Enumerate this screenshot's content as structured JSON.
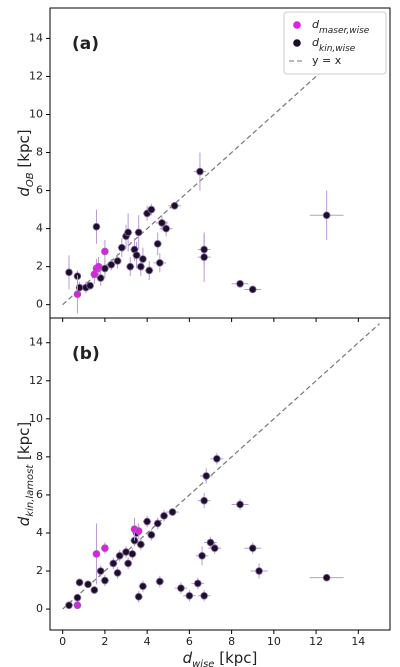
{
  "chart_data": [
    {
      "type": "scatter",
      "panel_label": "(a)",
      "ylabel": {
        "text": "d",
        "subscript": "OB",
        "unit": "[kpc]"
      },
      "xlim": [
        -0.6,
        15.5
      ],
      "ylim": [
        -0.7,
        15.6
      ],
      "xticks": [
        0,
        2,
        4,
        6,
        8,
        10,
        12,
        14
      ],
      "yticks": [
        0,
        2,
        4,
        6,
        8,
        10,
        12,
        14
      ],
      "show_xtick_labels": false,
      "legend": "upper right",
      "series": [
        {
          "name": "d",
          "name_subscript": "maser,wise",
          "color": "#e020e0",
          "x": [
            0.7,
            1.5,
            1.6,
            1.7,
            2.0
          ],
          "values": [
            0.55,
            1.6,
            1.9,
            2.0,
            2.8
          ],
          "xerr": [
            0.1,
            0.1,
            0.1,
            0.1,
            0.1
          ],
          "yerr": [
            1.0,
            0.5,
            0.5,
            0.5,
            0.6
          ]
        },
        {
          "name": "d",
          "name_subscript": "kin,wise",
          "color": "#1c1028",
          "x": [
            0.3,
            0.7,
            0.8,
            1.1,
            1.3,
            1.6,
            1.8,
            2.0,
            2.3,
            2.6,
            2.8,
            3.0,
            3.1,
            3.2,
            3.4,
            3.5,
            3.6,
            3.7,
            3.8,
            4.0,
            4.1,
            4.2,
            4.5,
            4.6,
            4.7,
            4.9,
            5.3,
            6.5,
            6.7,
            6.7,
            8.4,
            9.0,
            12.5
          ],
          "values": [
            1.7,
            1.5,
            0.9,
            0.9,
            1.0,
            4.1,
            1.4,
            1.9,
            2.1,
            2.3,
            3.0,
            3.6,
            3.8,
            2.0,
            2.9,
            2.6,
            3.8,
            2.0,
            2.4,
            4.8,
            1.8,
            5.0,
            3.2,
            2.2,
            4.3,
            4.0,
            5.2,
            7.0,
            2.9,
            2.5,
            1.1,
            0.8,
            4.7
          ],
          "xerr": [
            0.1,
            0.1,
            0.1,
            0.1,
            0.1,
            0.1,
            0.1,
            0.2,
            0.2,
            0.2,
            0.2,
            0.2,
            0.2,
            0.2,
            0.2,
            0.2,
            0.2,
            0.2,
            0.2,
            0.2,
            0.2,
            0.2,
            0.2,
            0.3,
            0.3,
            0.3,
            0.3,
            0.3,
            0.3,
            0.3,
            0.4,
            0.4,
            0.8
          ],
          "yerr": [
            0.9,
            0.3,
            0.3,
            0.3,
            0.2,
            0.9,
            0.4,
            0.5,
            0.3,
            0.4,
            0.5,
            0.6,
            1.0,
            0.5,
            0.6,
            0.7,
            0.9,
            0.5,
            0.6,
            0.4,
            0.5,
            0.3,
            0.6,
            0.5,
            0.4,
            0.4,
            0.2,
            1.0,
            0.8,
            1.3,
            0.1,
            0.1,
            1.3
          ]
        }
      ],
      "reference_line": {
        "name": "y = x",
        "x": [
          0,
          15
        ],
        "y": [
          0,
          15
        ],
        "color": "#777777"
      }
    },
    {
      "type": "scatter",
      "panel_label": "(b)",
      "ylabel": {
        "text": "d",
        "subscript": "kin,lamost",
        "unit": "[kpc]"
      },
      "xlabel": {
        "text": "d",
        "subscript": "wise",
        "unit": "[kpc]"
      },
      "xlim": [
        -0.6,
        15.5
      ],
      "ylim": [
        -1.1,
        15.3
      ],
      "xticks": [
        0,
        2,
        4,
        6,
        8,
        10,
        12,
        14
      ],
      "yticks": [
        0,
        2,
        4,
        6,
        8,
        10,
        12,
        14
      ],
      "show_xtick_labels": true,
      "series": [
        {
          "name": "d",
          "name_subscript": "maser,wise",
          "color": "#e020e0",
          "x": [
            0.7,
            1.6,
            2.0,
            3.4,
            3.6
          ],
          "values": [
            0.2,
            2.9,
            3.2,
            4.2,
            4.1
          ],
          "xerr": [
            0.1,
            0.1,
            0.1,
            0.1,
            0.1
          ],
          "yerr": [
            0.1,
            1.6,
            0.3,
            0.6,
            0.4
          ]
        },
        {
          "name": "d",
          "name_subscript": "kin,wise",
          "color": "#1c1028",
          "x": [
            0.3,
            0.7,
            0.8,
            1.2,
            1.5,
            1.8,
            2.0,
            2.4,
            2.6,
            2.7,
            3.0,
            3.1,
            3.3,
            3.4,
            3.5,
            3.6,
            3.7,
            3.8,
            4.0,
            4.2,
            4.5,
            4.6,
            4.8,
            5.2,
            5.6,
            6.0,
            6.4,
            6.6,
            6.7,
            6.7,
            6.8,
            7.0,
            7.2,
            7.3,
            8.4,
            9.0,
            9.3,
            12.5
          ],
          "values": [
            0.2,
            0.6,
            1.4,
            1.3,
            1.0,
            2.0,
            1.5,
            2.4,
            1.9,
            2.8,
            3.0,
            2.4,
            2.9,
            3.6,
            4.0,
            0.65,
            3.4,
            1.2,
            4.6,
            3.9,
            4.5,
            1.45,
            4.9,
            5.1,
            1.1,
            0.7,
            1.35,
            2.8,
            5.7,
            0.7,
            7.0,
            3.5,
            3.2,
            7.9,
            5.5,
            3.2,
            2.0,
            1.65
          ],
          "xerr": [
            0.1,
            0.1,
            0.1,
            0.1,
            0.1,
            0.1,
            0.2,
            0.2,
            0.2,
            0.2,
            0.2,
            0.2,
            0.2,
            0.2,
            0.2,
            0.2,
            0.2,
            0.2,
            0.2,
            0.2,
            0.2,
            0.2,
            0.2,
            0.3,
            0.3,
            0.3,
            0.3,
            0.3,
            0.3,
            0.3,
            0.3,
            0.3,
            0.3,
            0.3,
            0.4,
            0.4,
            0.4,
            0.8
          ],
          "yerr": [
            0.1,
            0.2,
            0.2,
            0.2,
            0.2,
            0.3,
            0.3,
            0.3,
            0.3,
            0.3,
            0.3,
            0.3,
            0.3,
            0.3,
            0.3,
            0.3,
            0.3,
            0.3,
            0.3,
            0.3,
            0.3,
            0.3,
            0.3,
            0.2,
            0.3,
            0.3,
            0.3,
            0.5,
            0.4,
            0.3,
            0.4,
            0.3,
            0.3,
            0.3,
            0.3,
            0.3,
            0.4,
            0.1
          ]
        }
      ],
      "reference_line": {
        "name": "y = x",
        "x": [
          0,
          15
        ],
        "y": [
          0,
          15
        ],
        "color": "#777777"
      }
    }
  ]
}
